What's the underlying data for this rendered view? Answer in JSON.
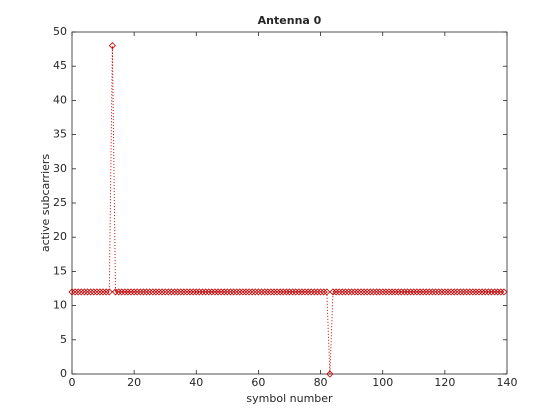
{
  "chart_data": {
    "type": "line",
    "title": "Antenna 0",
    "x_label": "symbol number",
    "y_label": "active subcarriers",
    "x": [
      0,
      1,
      2,
      3,
      4,
      5,
      6,
      7,
      8,
      9,
      10,
      11,
      12,
      13,
      14,
      15,
      16,
      17,
      18,
      19,
      20,
      21,
      22,
      23,
      24,
      25,
      26,
      27,
      28,
      29,
      30,
      31,
      32,
      33,
      34,
      35,
      36,
      37,
      38,
      39,
      40,
      41,
      42,
      43,
      44,
      45,
      46,
      47,
      48,
      49,
      50,
      51,
      52,
      53,
      54,
      55,
      56,
      57,
      58,
      59,
      60,
      61,
      62,
      63,
      64,
      65,
      66,
      67,
      68,
      69,
      70,
      71,
      72,
      73,
      74,
      75,
      76,
      77,
      78,
      79,
      80,
      81,
      82,
      83,
      84,
      85,
      86,
      87,
      88,
      89,
      90,
      91,
      92,
      93,
      94,
      95,
      96,
      97,
      98,
      99,
      100,
      101,
      102,
      103,
      104,
      105,
      106,
      107,
      108,
      109,
      110,
      111,
      112,
      113,
      114,
      115,
      116,
      117,
      118,
      119,
      120,
      121,
      122,
      123,
      124,
      125,
      126,
      127,
      128,
      129,
      130,
      131,
      132,
      133,
      134,
      135,
      136,
      137,
      138,
      139
    ],
    "values": [
      12,
      12,
      12,
      12,
      12,
      12,
      12,
      12,
      12,
      12,
      12,
      12,
      12,
      48,
      12,
      12,
      12,
      12,
      12,
      12,
      12,
      12,
      12,
      12,
      12,
      12,
      12,
      12,
      12,
      12,
      12,
      12,
      12,
      12,
      12,
      12,
      12,
      12,
      12,
      12,
      12,
      12,
      12,
      12,
      12,
      12,
      12,
      12,
      12,
      12,
      12,
      12,
      12,
      12,
      12,
      12,
      12,
      12,
      12,
      12,
      12,
      12,
      12,
      12,
      12,
      12,
      12,
      12,
      12,
      12,
      12,
      12,
      12,
      12,
      12,
      12,
      12,
      12,
      12,
      12,
      12,
      12,
      12,
      0,
      12,
      12,
      12,
      12,
      12,
      12,
      12,
      12,
      12,
      12,
      12,
      12,
      12,
      12,
      12,
      12,
      12,
      12,
      12,
      12,
      12,
      12,
      12,
      12,
      12,
      12,
      12,
      12,
      12,
      12,
      12,
      12,
      12,
      12,
      12,
      12,
      12,
      12,
      12,
      12,
      12,
      12,
      12,
      12,
      12,
      12,
      12,
      12,
      12,
      12,
      12,
      12,
      12,
      12,
      12,
      12
    ],
    "color": "#c00000",
    "xlim": [
      0,
      140
    ],
    "xticks": [
      0,
      20,
      40,
      60,
      80,
      100,
      120,
      140
    ],
    "ylim": [
      0,
      50
    ],
    "yticks": [
      0,
      5,
      10,
      15,
      20,
      25,
      30,
      35,
      40,
      45,
      50
    ]
  }
}
